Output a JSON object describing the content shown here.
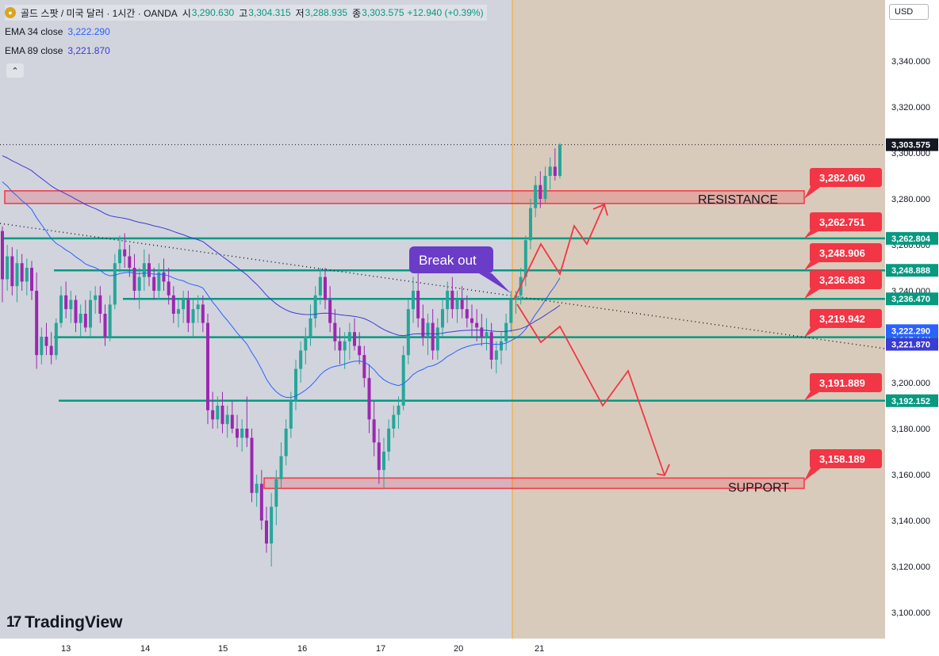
{
  "header": {
    "instrument": "골드 스팟 / 미국 달러 · 1시간 · OANDA",
    "open_label": "시",
    "open": "3,290.630",
    "high_label": "고",
    "high": "3,304.315",
    "low_label": "저",
    "low": "3,288.935",
    "close_label": "종",
    "close": "3,303.575",
    "change": "+12.940 (+0.39%)"
  },
  "indicators": [
    {
      "label": "EMA 34 close",
      "value": "3,222.290",
      "color": "#2962ff"
    },
    {
      "label": "EMA 89 close",
      "value": "3,221.870",
      "color": "#3b3bd6"
    }
  ],
  "currency": "USD",
  "logo_text": "TradingView",
  "colors": {
    "up": "#26a69a",
    "down": "#9c27b0",
    "level_line": "#089981",
    "resistance": "#f23645",
    "annotation": "#f23645",
    "label_purple": "#6a3cc8"
  },
  "chart_data": {
    "type": "candlestick",
    "y_ticks": [
      3100,
      3120,
      3140,
      3160,
      3180,
      3200,
      3220,
      3240,
      3260,
      3280,
      3300,
      3320,
      3340
    ],
    "y_tick_labels": [
      "3,100.000",
      "3,120.000",
      "3,140.000",
      "3,160.000",
      "3,180.000",
      "3,200.000",
      "3,220.000",
      "3,240.000",
      "3,260.000",
      "3,280.000",
      "3,300.000",
      "3,320.000",
      "3,340.000"
    ],
    "x_labels": [
      "13",
      "14",
      "15",
      "16",
      "17",
      "20",
      "21"
    ],
    "last_price": 3303.575,
    "last_price_label": "3,303.575",
    "ema_labels": [
      {
        "value": 3222.29,
        "text": "3,222.290",
        "color": "#2962ff"
      },
      {
        "value": 3221.87,
        "text": "3,221.870",
        "color": "#3b3bd6"
      }
    ],
    "horizontal_levels": [
      {
        "value": 3262.804,
        "label": "3,262.804",
        "callout": "3,262.751"
      },
      {
        "value": 3248.888,
        "label": "3,248.888",
        "callout": "3,248.906"
      },
      {
        "value": 3236.47,
        "label": "3,236.470",
        "callout": "3,236.883"
      },
      {
        "value": 3219.77,
        "label": "3,219.770",
        "callout": "3,219.942"
      },
      {
        "value": 3192.152,
        "label": "3,192.152",
        "callout": "3,191.889"
      }
    ],
    "zones": [
      {
        "name": "RESISTANCE",
        "top": 3283.5,
        "bottom": 3278.0,
        "callout": "3,282.060"
      },
      {
        "name": "SUPPORT",
        "top": 3158.5,
        "bottom": 3154.0,
        "callout": "3,158.189"
      }
    ],
    "annotation": "Break out",
    "candles": [
      [
        3266,
        3268,
        3235,
        3245
      ],
      [
        3245,
        3260,
        3240,
        3255
      ],
      [
        3255,
        3259,
        3238,
        3242
      ],
      [
        3242,
        3258,
        3235,
        3252
      ],
      [
        3252,
        3256,
        3240,
        3244
      ],
      [
        3244,
        3254,
        3238,
        3250
      ],
      [
        3250,
        3253,
        3236,
        3240
      ],
      [
        3240,
        3248,
        3206,
        3212
      ],
      [
        3212,
        3224,
        3208,
        3220
      ],
      [
        3220,
        3226,
        3212,
        3216
      ],
      [
        3216,
        3222,
        3208,
        3212
      ],
      [
        3212,
        3228,
        3210,
        3226
      ],
      [
        3226,
        3242,
        3224,
        3238
      ],
      [
        3238,
        3244,
        3228,
        3232
      ],
      [
        3232,
        3240,
        3226,
        3236
      ],
      [
        3236,
        3238,
        3222,
        3226
      ],
      [
        3226,
        3234,
        3220,
        3230
      ],
      [
        3230,
        3236,
        3222,
        3224
      ],
      [
        3224,
        3240,
        3220,
        3236
      ],
      [
        3236,
        3242,
        3230,
        3238
      ],
      [
        3238,
        3242,
        3226,
        3230
      ],
      [
        3230,
        3234,
        3216,
        3220
      ],
      [
        3220,
        3238,
        3218,
        3234
      ],
      [
        3234,
        3256,
        3232,
        3252
      ],
      [
        3252,
        3264,
        3248,
        3258
      ],
      [
        3258,
        3265,
        3250,
        3255
      ],
      [
        3255,
        3260,
        3246,
        3250
      ],
      [
        3250,
        3256,
        3236,
        3240
      ],
      [
        3240,
        3250,
        3232,
        3246
      ],
      [
        3246,
        3258,
        3240,
        3252
      ],
      [
        3252,
        3256,
        3242,
        3246
      ],
      [
        3246,
        3250,
        3236,
        3240
      ],
      [
        3240,
        3252,
        3236,
        3248
      ],
      [
        3248,
        3254,
        3240,
        3244
      ],
      [
        3244,
        3250,
        3234,
        3238
      ],
      [
        3238,
        3242,
        3226,
        3230
      ],
      [
        3230,
        3236,
        3224,
        3232
      ],
      [
        3232,
        3240,
        3226,
        3236
      ],
      [
        3236,
        3240,
        3222,
        3226
      ],
      [
        3226,
        3236,
        3220,
        3232
      ],
      [
        3232,
        3238,
        3226,
        3234
      ],
      [
        3234,
        3238,
        3222,
        3226
      ],
      [
        3226,
        3230,
        3182,
        3188
      ],
      [
        3188,
        3196,
        3180,
        3184
      ],
      [
        3184,
        3194,
        3180,
        3190
      ],
      [
        3190,
        3196,
        3178,
        3182
      ],
      [
        3182,
        3190,
        3176,
        3186
      ],
      [
        3186,
        3192,
        3178,
        3180
      ],
      [
        3180,
        3186,
        3172,
        3176
      ],
      [
        3176,
        3184,
        3170,
        3180
      ],
      [
        3180,
        3194,
        3172,
        3176
      ],
      [
        3176,
        3180,
        3148,
        3152
      ],
      [
        3152,
        3160,
        3146,
        3156
      ],
      [
        3156,
        3162,
        3136,
        3140
      ],
      [
        3140,
        3146,
        3126,
        3130
      ],
      [
        3130,
        3152,
        3120,
        3146
      ],
      [
        3146,
        3162,
        3138,
        3158
      ],
      [
        3158,
        3174,
        3154,
        3168
      ],
      [
        3168,
        3184,
        3164,
        3180
      ],
      [
        3180,
        3196,
        3176,
        3192
      ],
      [
        3192,
        3210,
        3188,
        3206
      ],
      [
        3206,
        3218,
        3200,
        3214
      ],
      [
        3214,
        3224,
        3208,
        3220
      ],
      [
        3220,
        3234,
        3216,
        3228
      ],
      [
        3228,
        3242,
        3224,
        3238
      ],
      [
        3238,
        3250,
        3234,
        3246
      ],
      [
        3246,
        3250,
        3232,
        3236
      ],
      [
        3236,
        3242,
        3222,
        3226
      ],
      [
        3226,
        3232,
        3214,
        3218
      ],
      [
        3218,
        3224,
        3208,
        3214
      ],
      [
        3214,
        3222,
        3206,
        3218
      ],
      [
        3218,
        3226,
        3210,
        3222
      ],
      [
        3222,
        3228,
        3214,
        3216
      ],
      [
        3216,
        3222,
        3208,
        3212
      ],
      [
        3212,
        3216,
        3198,
        3202
      ],
      [
        3202,
        3208,
        3178,
        3184
      ],
      [
        3184,
        3192,
        3168,
        3174
      ],
      [
        3174,
        3180,
        3156,
        3162
      ],
      [
        3162,
        3176,
        3154,
        3170
      ],
      [
        3170,
        3184,
        3166,
        3180
      ],
      [
        3180,
        3190,
        3176,
        3186
      ],
      [
        3186,
        3194,
        3180,
        3190
      ],
      [
        3190,
        3216,
        3188,
        3212
      ],
      [
        3212,
        3236,
        3208,
        3232
      ],
      [
        3232,
        3246,
        3226,
        3240
      ],
      [
        3240,
        3248,
        3224,
        3228
      ],
      [
        3228,
        3234,
        3216,
        3220
      ],
      [
        3220,
        3230,
        3212,
        3226
      ],
      [
        3226,
        3232,
        3210,
        3214
      ],
      [
        3214,
        3228,
        3210,
        3224
      ],
      [
        3224,
        3236,
        3220,
        3232
      ],
      [
        3232,
        3244,
        3226,
        3240
      ],
      [
        3240,
        3246,
        3228,
        3232
      ],
      [
        3232,
        3240,
        3226,
        3236
      ],
      [
        3236,
        3242,
        3228,
        3232
      ],
      [
        3232,
        3238,
        3224,
        3228
      ],
      [
        3228,
        3234,
        3220,
        3226
      ],
      [
        3226,
        3232,
        3218,
        3224
      ],
      [
        3224,
        3230,
        3216,
        3220
      ],
      [
        3220,
        3228,
        3214,
        3222
      ],
      [
        3222,
        3226,
        3206,
        3210
      ],
      [
        3210,
        3218,
        3204,
        3214
      ],
      [
        3214,
        3222,
        3208,
        3218
      ],
      [
        3218,
        3230,
        3214,
        3226
      ],
      [
        3226,
        3240,
        3222,
        3236
      ],
      [
        3236,
        3240,
        3230,
        3238
      ],
      [
        3238,
        3250,
        3234,
        3246
      ],
      [
        3246,
        3264,
        3242,
        3262
      ],
      [
        3262,
        3280,
        3258,
        3276
      ],
      [
        3276,
        3290,
        3272,
        3286
      ],
      [
        3286,
        3292,
        3276,
        3280
      ],
      [
        3280,
        3294,
        3278,
        3290
      ],
      [
        3290,
        3298,
        3284,
        3294
      ],
      [
        3294,
        3302,
        3288,
        3290
      ],
      [
        3290,
        3304.3,
        3288.9,
        3303.6
      ]
    ]
  }
}
